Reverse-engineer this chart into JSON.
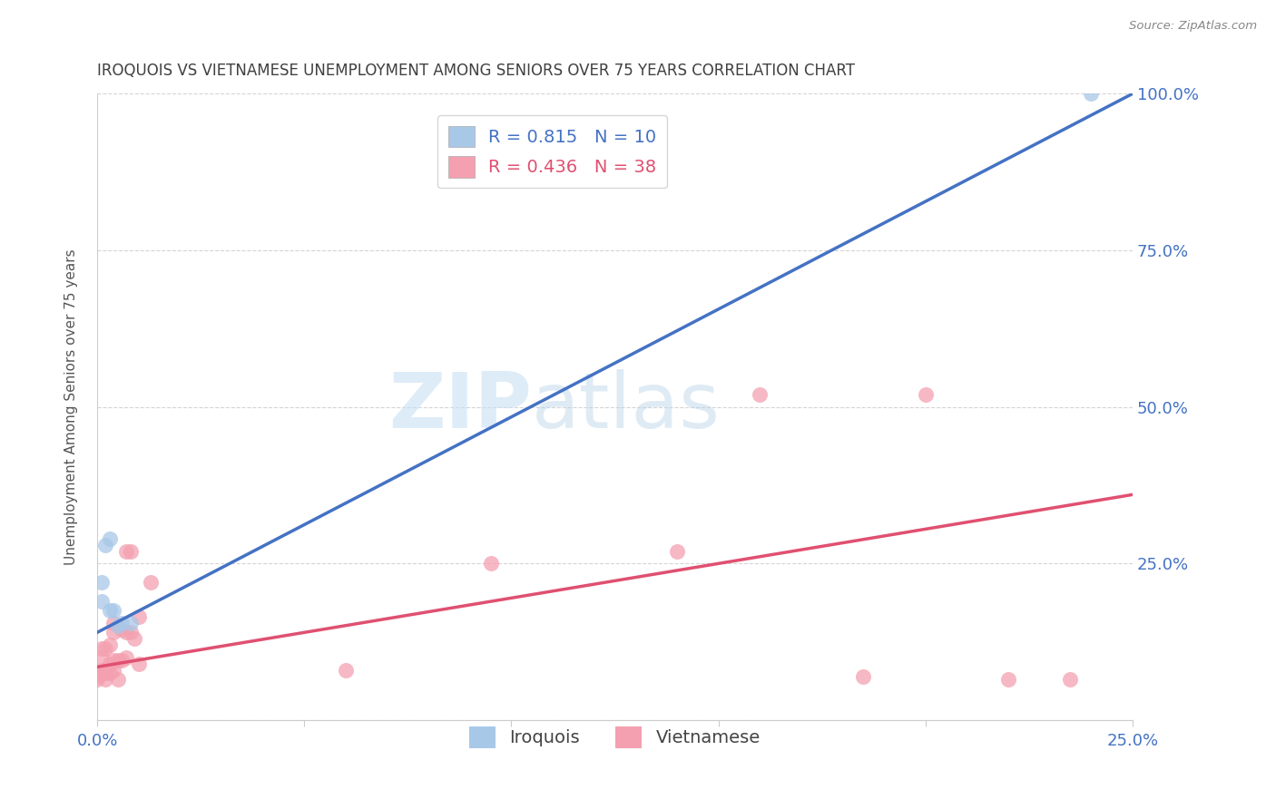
{
  "title": "IROQUOIS VS VIETNAMESE UNEMPLOYMENT AMONG SENIORS OVER 75 YEARS CORRELATION CHART",
  "source": "Source: ZipAtlas.com",
  "ylabel": "Unemployment Among Seniors over 75 years",
  "xlim": [
    0.0,
    0.25
  ],
  "ylim": [
    0.0,
    1.0
  ],
  "x_ticks": [
    0.0,
    0.05,
    0.1,
    0.15,
    0.2,
    0.25
  ],
  "x_tick_labels": [
    "0.0%",
    "",
    "",
    "",
    "",
    "25.0%"
  ],
  "y_ticks_right": [
    0.0,
    0.25,
    0.5,
    0.75,
    1.0
  ],
  "y_tick_labels_right": [
    "",
    "25.0%",
    "50.0%",
    "75.0%",
    "100.0%"
  ],
  "iroquois_R": 0.815,
  "iroquois_N": 10,
  "vietnamese_R": 0.436,
  "vietnamese_N": 38,
  "iroquois_color": "#a8c8e8",
  "iroquois_line_color": "#4472c4",
  "vietnamese_color": "#f4a0b0",
  "vietnamese_line_color": "#e05070",
  "iroquois_line_x0": 0.0,
  "iroquois_line_y0": 0.14,
  "iroquois_line_x1": 0.25,
  "iroquois_line_y1": 1.0,
  "vietnamese_line_x0": 0.0,
  "vietnamese_line_y0": 0.085,
  "vietnamese_line_x1": 0.25,
  "vietnamese_line_y1": 0.36,
  "iroquois_x": [
    0.001,
    0.001,
    0.002,
    0.003,
    0.003,
    0.004,
    0.005,
    0.006,
    0.008,
    0.24
  ],
  "iroquois_y": [
    0.19,
    0.22,
    0.28,
    0.29,
    0.175,
    0.175,
    0.15,
    0.155,
    0.155,
    1.0
  ],
  "vietnamese_x": [
    0.0,
    0.0,
    0.0,
    0.001,
    0.001,
    0.001,
    0.001,
    0.002,
    0.002,
    0.002,
    0.003,
    0.003,
    0.003,
    0.004,
    0.004,
    0.004,
    0.004,
    0.005,
    0.005,
    0.006,
    0.006,
    0.007,
    0.007,
    0.007,
    0.008,
    0.008,
    0.009,
    0.01,
    0.01,
    0.013,
    0.06,
    0.095,
    0.14,
    0.16,
    0.185,
    0.2,
    0.22,
    0.235
  ],
  "vietnamese_y": [
    0.065,
    0.07,
    0.075,
    0.075,
    0.08,
    0.1,
    0.115,
    0.065,
    0.075,
    0.115,
    0.075,
    0.09,
    0.12,
    0.08,
    0.095,
    0.14,
    0.155,
    0.065,
    0.095,
    0.095,
    0.145,
    0.1,
    0.14,
    0.27,
    0.14,
    0.27,
    0.13,
    0.09,
    0.165,
    0.22,
    0.08,
    0.25,
    0.27,
    0.52,
    0.07,
    0.52,
    0.065,
    0.065
  ],
  "watermark_part1": "ZIP",
  "watermark_part2": "atlas",
  "background_color": "#ffffff",
  "grid_color": "#d0d0d0",
  "title_color": "#404040",
  "axis_label_color": "#555555",
  "legend_label_iroquois": "Iroquois",
  "legend_label_vietnamese": "Vietnamese",
  "legend_text_color": "#4472c4",
  "legend_text_color2": "#e05070"
}
